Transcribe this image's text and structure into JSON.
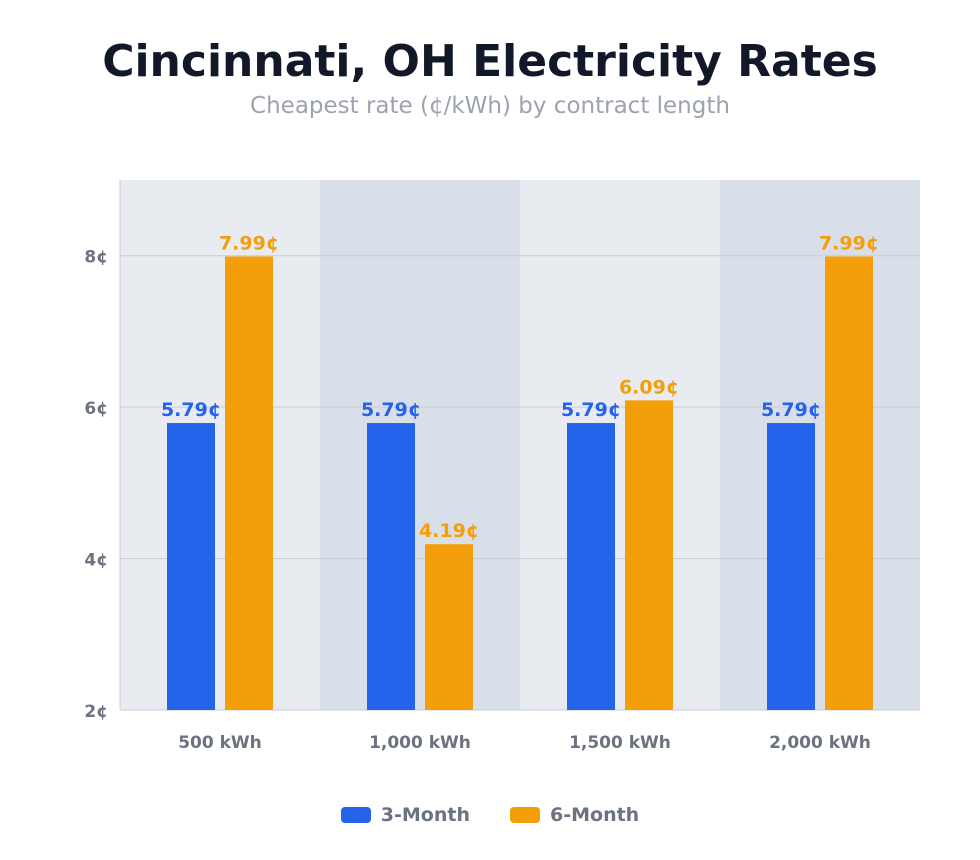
{
  "chart_data": {
    "type": "bar",
    "title": "Cincinnati, OH Electricity Rates",
    "subtitle": "Cheapest rate (¢/kWh) by contract length",
    "xlabel": "",
    "ylabel": "",
    "categories": [
      "500 kWh",
      "1,000 kWh",
      "1,500 kWh",
      "2,000 kWh"
    ],
    "series": [
      {
        "name": "3-Month",
        "values": [
          5.79,
          5.79,
          5.79,
          5.79
        ],
        "labels": [
          "5.79¢",
          "5.79¢",
          "5.79¢",
          "5.79¢"
        ],
        "color": "#2563eb"
      },
      {
        "name": "6-Month",
        "values": [
          7.99,
          4.19,
          6.09,
          7.99
        ],
        "labels": [
          "7.99¢",
          "4.19¢",
          "6.09¢",
          "7.99¢"
        ],
        "color": "#f59e0b"
      }
    ],
    "ylim": [
      2,
      9
    ],
    "yticks": [
      2,
      4,
      6,
      8
    ],
    "ytick_labels": [
      "2¢",
      "4¢",
      "6¢",
      "8¢"
    ],
    "grid": true,
    "legend": "bottom",
    "band_colors": [
      "#e8ebf0",
      "#d9dfe8"
    ]
  }
}
